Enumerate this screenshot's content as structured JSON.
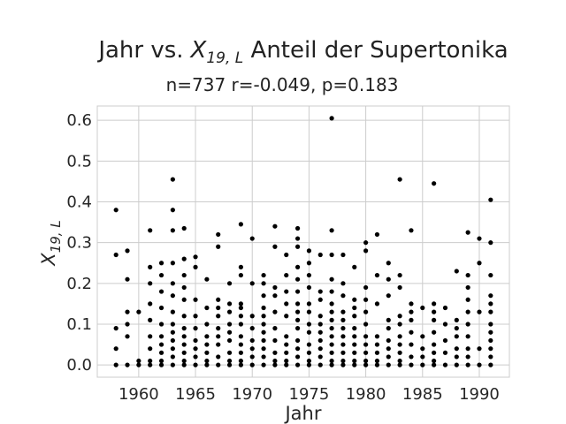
{
  "chart_data": {
    "type": "scatter",
    "title": "Jahr vs.",
    "title_math": "X",
    "title_math_sub": "19, L",
    "title_rest": " Anteil der Supertonika",
    "subtitle": "n=737 r=-0.049, p=0.183",
    "xlabel": "Jahr",
    "ylabel_math": "X",
    "ylabel_math_sub": "19, L",
    "xlim": [
      1956.35,
      1992.65
    ],
    "ylim": [
      -0.03,
      0.635
    ],
    "xticks": [
      1960,
      1965,
      1970,
      1975,
      1980,
      1985,
      1990
    ],
    "yticks": [
      0.0,
      0.1,
      0.2,
      0.3,
      0.4,
      0.5,
      0.6
    ],
    "ytick_labels": [
      "0.0",
      "0.1",
      "0.2",
      "0.3",
      "0.4",
      "0.5",
      "0.6"
    ],
    "grid": true,
    "point_color": "#000000",
    "points": [
      [
        1958,
        0.38
      ],
      [
        1958,
        0.27
      ],
      [
        1958,
        0.09
      ],
      [
        1958,
        0.04
      ],
      [
        1958,
        0.0
      ],
      [
        1959,
        0.28
      ],
      [
        1959,
        0.21
      ],
      [
        1959,
        0.13
      ],
      [
        1959,
        0.1
      ],
      [
        1959,
        0.07
      ],
      [
        1959,
        0.0
      ],
      [
        1960,
        0.13
      ],
      [
        1960,
        0.01
      ],
      [
        1960,
        0.0
      ],
      [
        1961,
        0.33
      ],
      [
        1961,
        0.24
      ],
      [
        1961,
        0.2
      ],
      [
        1961,
        0.15
      ],
      [
        1961,
        0.11
      ],
      [
        1961,
        0.07
      ],
      [
        1961,
        0.04
      ],
      [
        1961,
        0.01
      ],
      [
        1961,
        0.0
      ],
      [
        1962,
        0.25
      ],
      [
        1962,
        0.22
      ],
      [
        1962,
        0.18
      ],
      [
        1962,
        0.14
      ],
      [
        1962,
        0.1
      ],
      [
        1962,
        0.07
      ],
      [
        1962,
        0.05
      ],
      [
        1962,
        0.03
      ],
      [
        1962,
        0.01
      ],
      [
        1962,
        0.0
      ],
      [
        1963,
        0.455
      ],
      [
        1963,
        0.38
      ],
      [
        1963,
        0.33
      ],
      [
        1963,
        0.25
      ],
      [
        1963,
        0.2
      ],
      [
        1963,
        0.17
      ],
      [
        1963,
        0.13
      ],
      [
        1963,
        0.1
      ],
      [
        1963,
        0.08
      ],
      [
        1963,
        0.06
      ],
      [
        1963,
        0.04
      ],
      [
        1963,
        0.02
      ],
      [
        1963,
        0.0
      ],
      [
        1964,
        0.335
      ],
      [
        1964,
        0.26
      ],
      [
        1964,
        0.22
      ],
      [
        1964,
        0.19
      ],
      [
        1964,
        0.16
      ],
      [
        1964,
        0.12
      ],
      [
        1964,
        0.09
      ],
      [
        1964,
        0.07
      ],
      [
        1964,
        0.05
      ],
      [
        1964,
        0.03
      ],
      [
        1964,
        0.01
      ],
      [
        1964,
        0.0
      ],
      [
        1965,
        0.265
      ],
      [
        1965,
        0.24
      ],
      [
        1965,
        0.16
      ],
      [
        1965,
        0.12
      ],
      [
        1965,
        0.09
      ],
      [
        1965,
        0.06
      ],
      [
        1965,
        0.04
      ],
      [
        1965,
        0.02
      ],
      [
        1965,
        0.0
      ],
      [
        1966,
        0.21
      ],
      [
        1966,
        0.14
      ],
      [
        1966,
        0.1
      ],
      [
        1966,
        0.07
      ],
      [
        1966,
        0.05
      ],
      [
        1966,
        0.03
      ],
      [
        1966,
        0.01
      ],
      [
        1966,
        0.0
      ],
      [
        1967,
        0.32
      ],
      [
        1967,
        0.29
      ],
      [
        1967,
        0.16
      ],
      [
        1967,
        0.14
      ],
      [
        1967,
        0.12
      ],
      [
        1967,
        0.09
      ],
      [
        1967,
        0.07
      ],
      [
        1967,
        0.05
      ],
      [
        1967,
        0.02
      ],
      [
        1967,
        0.0
      ],
      [
        1968,
        0.2
      ],
      [
        1968,
        0.15
      ],
      [
        1968,
        0.13
      ],
      [
        1968,
        0.1
      ],
      [
        1968,
        0.08
      ],
      [
        1968,
        0.06
      ],
      [
        1968,
        0.03
      ],
      [
        1968,
        0.01
      ],
      [
        1968,
        0.0
      ],
      [
        1969,
        0.345
      ],
      [
        1969,
        0.24
      ],
      [
        1969,
        0.22
      ],
      [
        1969,
        0.15
      ],
      [
        1969,
        0.14
      ],
      [
        1969,
        0.12
      ],
      [
        1969,
        0.1
      ],
      [
        1969,
        0.07
      ],
      [
        1969,
        0.05
      ],
      [
        1969,
        0.03
      ],
      [
        1969,
        0.01
      ],
      [
        1969,
        0.0
      ],
      [
        1970,
        0.31
      ],
      [
        1970,
        0.2
      ],
      [
        1970,
        0.12
      ],
      [
        1970,
        0.09
      ],
      [
        1970,
        0.06
      ],
      [
        1970,
        0.04
      ],
      [
        1970,
        0.02
      ],
      [
        1970,
        0.0
      ],
      [
        1971,
        0.22
      ],
      [
        1971,
        0.2
      ],
      [
        1971,
        0.17
      ],
      [
        1971,
        0.14
      ],
      [
        1971,
        0.12
      ],
      [
        1971,
        0.1
      ],
      [
        1971,
        0.08
      ],
      [
        1971,
        0.06
      ],
      [
        1971,
        0.04
      ],
      [
        1971,
        0.02
      ],
      [
        1971,
        0.0
      ],
      [
        1972,
        0.34
      ],
      [
        1972,
        0.29
      ],
      [
        1972,
        0.19
      ],
      [
        1972,
        0.17
      ],
      [
        1972,
        0.13
      ],
      [
        1972,
        0.09
      ],
      [
        1972,
        0.06
      ],
      [
        1972,
        0.03
      ],
      [
        1972,
        0.01
      ],
      [
        1972,
        0.0
      ],
      [
        1973,
        0.27
      ],
      [
        1973,
        0.22
      ],
      [
        1973,
        0.18
      ],
      [
        1973,
        0.15
      ],
      [
        1973,
        0.12
      ],
      [
        1973,
        0.07
      ],
      [
        1973,
        0.05
      ],
      [
        1973,
        0.03
      ],
      [
        1973,
        0.01
      ],
      [
        1973,
        0.0
      ],
      [
        1974,
        0.335
      ],
      [
        1974,
        0.31
      ],
      [
        1974,
        0.29
      ],
      [
        1974,
        0.24
      ],
      [
        1974,
        0.21
      ],
      [
        1974,
        0.18
      ],
      [
        1974,
        0.15
      ],
      [
        1974,
        0.13
      ],
      [
        1974,
        0.11
      ],
      [
        1974,
        0.09
      ],
      [
        1974,
        0.06
      ],
      [
        1974,
        0.04
      ],
      [
        1974,
        0.02
      ],
      [
        1974,
        0.0
      ],
      [
        1975,
        0.28
      ],
      [
        1975,
        0.25
      ],
      [
        1975,
        0.22
      ],
      [
        1975,
        0.19
      ],
      [
        1975,
        0.15
      ],
      [
        1975,
        0.13
      ],
      [
        1975,
        0.1
      ],
      [
        1975,
        0.08
      ],
      [
        1975,
        0.05
      ],
      [
        1975,
        0.03
      ],
      [
        1975,
        0.01
      ],
      [
        1975,
        0.0
      ],
      [
        1976,
        0.27
      ],
      [
        1976,
        0.18
      ],
      [
        1976,
        0.16
      ],
      [
        1976,
        0.12
      ],
      [
        1976,
        0.1
      ],
      [
        1976,
        0.08
      ],
      [
        1976,
        0.06
      ],
      [
        1976,
        0.04
      ],
      [
        1976,
        0.02
      ],
      [
        1976,
        0.0
      ],
      [
        1977,
        0.605
      ],
      [
        1977,
        0.33
      ],
      [
        1977,
        0.27
      ],
      [
        1977,
        0.21
      ],
      [
        1977,
        0.18
      ],
      [
        1977,
        0.15
      ],
      [
        1977,
        0.13
      ],
      [
        1977,
        0.11
      ],
      [
        1977,
        0.09
      ],
      [
        1977,
        0.07
      ],
      [
        1977,
        0.05
      ],
      [
        1977,
        0.03
      ],
      [
        1977,
        0.01
      ],
      [
        1977,
        0.0
      ],
      [
        1978,
        0.27
      ],
      [
        1978,
        0.2
      ],
      [
        1978,
        0.17
      ],
      [
        1978,
        0.13
      ],
      [
        1978,
        0.11
      ],
      [
        1978,
        0.09
      ],
      [
        1978,
        0.07
      ],
      [
        1978,
        0.05
      ],
      [
        1978,
        0.03
      ],
      [
        1978,
        0.01
      ],
      [
        1978,
        0.0
      ],
      [
        1979,
        0.24
      ],
      [
        1979,
        0.16
      ],
      [
        1979,
        0.14
      ],
      [
        1979,
        0.12
      ],
      [
        1979,
        0.09
      ],
      [
        1979,
        0.07
      ],
      [
        1979,
        0.05
      ],
      [
        1979,
        0.03
      ],
      [
        1979,
        0.01
      ],
      [
        1979,
        0.0
      ],
      [
        1980,
        0.3
      ],
      [
        1980,
        0.28
      ],
      [
        1980,
        0.19
      ],
      [
        1980,
        0.16
      ],
      [
        1980,
        0.13
      ],
      [
        1980,
        0.1
      ],
      [
        1980,
        0.07
      ],
      [
        1980,
        0.05
      ],
      [
        1980,
        0.03
      ],
      [
        1980,
        0.01
      ],
      [
        1980,
        0.0
      ],
      [
        1981,
        0.32
      ],
      [
        1981,
        0.22
      ],
      [
        1981,
        0.15
      ],
      [
        1981,
        0.07
      ],
      [
        1981,
        0.05
      ],
      [
        1981,
        0.03
      ],
      [
        1981,
        0.01
      ],
      [
        1981,
        0.0
      ],
      [
        1982,
        0.25
      ],
      [
        1982,
        0.21
      ],
      [
        1982,
        0.17
      ],
      [
        1982,
        0.11
      ],
      [
        1982,
        0.09
      ],
      [
        1982,
        0.06
      ],
      [
        1982,
        0.04
      ],
      [
        1982,
        0.02
      ],
      [
        1982,
        0.0
      ],
      [
        1983,
        0.455
      ],
      [
        1983,
        0.22
      ],
      [
        1983,
        0.19
      ],
      [
        1983,
        0.12
      ],
      [
        1983,
        0.1
      ],
      [
        1983,
        0.07
      ],
      [
        1983,
        0.05
      ],
      [
        1983,
        0.03
      ],
      [
        1983,
        0.01
      ],
      [
        1983,
        0.0
      ],
      [
        1984,
        0.33
      ],
      [
        1984,
        0.15
      ],
      [
        1984,
        0.13
      ],
      [
        1984,
        0.11
      ],
      [
        1984,
        0.08
      ],
      [
        1984,
        0.05
      ],
      [
        1984,
        0.02
      ],
      [
        1984,
        0.0
      ],
      [
        1985,
        0.14
      ],
      [
        1985,
        0.07
      ],
      [
        1985,
        0.04
      ],
      [
        1985,
        0.02
      ],
      [
        1985,
        0.0
      ],
      [
        1986,
        0.445
      ],
      [
        1986,
        0.15
      ],
      [
        1986,
        0.13
      ],
      [
        1986,
        0.11
      ],
      [
        1986,
        0.08
      ],
      [
        1986,
        0.05
      ],
      [
        1986,
        0.03
      ],
      [
        1986,
        0.01
      ],
      [
        1986,
        0.0
      ],
      [
        1987,
        0.14
      ],
      [
        1987,
        0.1
      ],
      [
        1987,
        0.06
      ],
      [
        1987,
        0.03
      ],
      [
        1987,
        0.0
      ],
      [
        1988,
        0.23
      ],
      [
        1988,
        0.11
      ],
      [
        1988,
        0.09
      ],
      [
        1988,
        0.07
      ],
      [
        1988,
        0.04
      ],
      [
        1988,
        0.02
      ],
      [
        1988,
        0.0
      ],
      [
        1989,
        0.325
      ],
      [
        1989,
        0.22
      ],
      [
        1989,
        0.19
      ],
      [
        1989,
        0.16
      ],
      [
        1989,
        0.13
      ],
      [
        1989,
        0.1
      ],
      [
        1989,
        0.07
      ],
      [
        1989,
        0.04
      ],
      [
        1989,
        0.02
      ],
      [
        1989,
        0.0
      ],
      [
        1990,
        0.31
      ],
      [
        1990,
        0.25
      ],
      [
        1990,
        0.13
      ],
      [
        1990,
        0.04
      ],
      [
        1990,
        0.0
      ],
      [
        1991,
        0.405
      ],
      [
        1991,
        0.3
      ],
      [
        1991,
        0.22
      ],
      [
        1991,
        0.17
      ],
      [
        1991,
        0.15
      ],
      [
        1991,
        0.13
      ],
      [
        1991,
        0.1
      ],
      [
        1991,
        0.08
      ],
      [
        1991,
        0.06
      ],
      [
        1991,
        0.04
      ],
      [
        1991,
        0.02
      ],
      [
        1991,
        0.0
      ]
    ]
  }
}
